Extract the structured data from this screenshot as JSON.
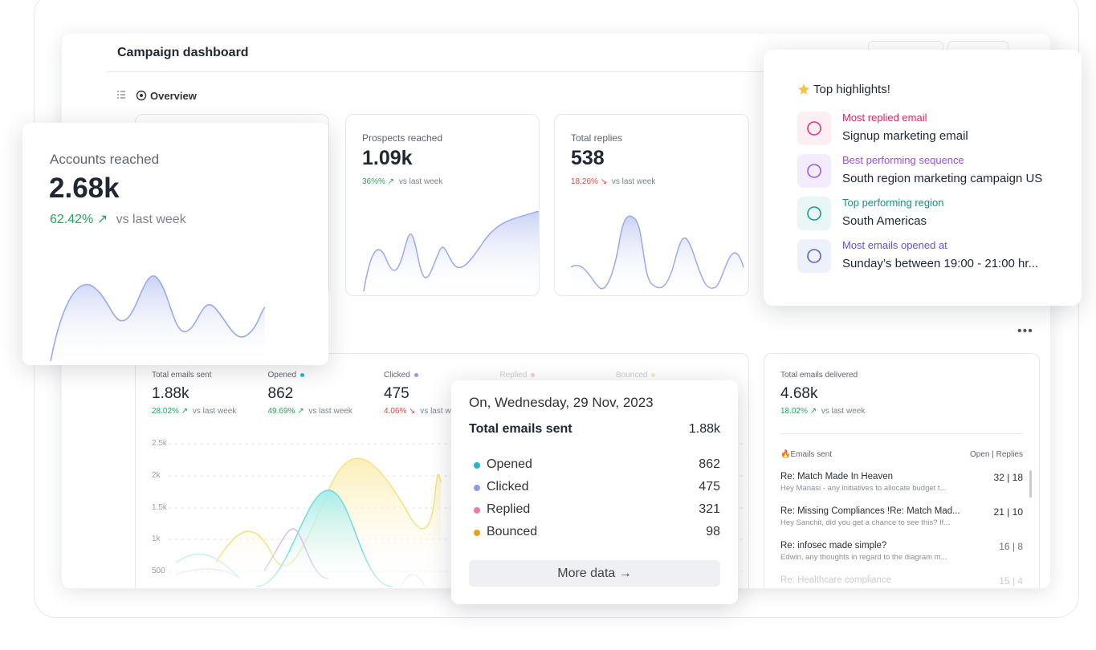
{
  "header": {
    "title": "Campaign dashboard",
    "tab": "Overview"
  },
  "kpis": [
    {
      "label": "Accounts reached",
      "value": "2.68k",
      "change": "62.42%",
      "compare": "vs last week"
    },
    {
      "label": "Prospects reached",
      "value": "1.09k",
      "change": "36%%",
      "compare": "vs last week"
    },
    {
      "label": "Total replies",
      "value": "538",
      "change": "18.26%",
      "compare": "vs last week"
    }
  ],
  "highlights": {
    "title": "Top highlights!",
    "items": [
      {
        "label": "Most replied email",
        "value": "Signup marketing email"
      },
      {
        "label": "Best performing sequence",
        "value": "South region marketing campaign US"
      },
      {
        "label": "Top performing region",
        "value": "South Americas"
      },
      {
        "label": "Most emails opened at",
        "value": "Sunday’s between 19:00 - 21:00 hr..."
      }
    ]
  },
  "email_stats": {
    "metrics": [
      {
        "label": "Total emails sent",
        "value": "1.88k",
        "change": "28.02%",
        "compare": "vs last week"
      },
      {
        "label": "Opened",
        "value": "862",
        "change": "49.69%",
        "compare": "vs last week"
      },
      {
        "label": "Clicked",
        "value": "475",
        "change": "4.06%",
        "compare": "vs last week"
      },
      {
        "label": "Replied"
      },
      {
        "label": "Bounced"
      }
    ],
    "yticks": [
      "2.5k",
      "2k",
      "1.5k",
      "1k",
      "500"
    ]
  },
  "tooltip": {
    "date": "On, Wednesday, 29 Nov, 2023",
    "total_label": "Total emails sent",
    "total_value": "1.88k",
    "rows": [
      {
        "label": "Opened",
        "value": "862"
      },
      {
        "label": "Clicked",
        "value": "475"
      },
      {
        "label": "Replied",
        "value": "321"
      },
      {
        "label": "Bounced",
        "value": "98"
      }
    ],
    "button": "More data"
  },
  "delivered": {
    "label": "Total emails delivered",
    "value": "4.68k",
    "change": "18.02%",
    "compare": "vs last week",
    "list_title": "Emails sent",
    "list_header": "Open | Replies",
    "emails": [
      {
        "subject": "Re: Match Made In Heaven",
        "preview": "Hey Manasi - any initiatives to allocate budget t...",
        "stats": "32 | 18"
      },
      {
        "subject": "Re: Missing Compliances !Re: Match Mad...",
        "preview": "Hey Sanchit, did you get a chance to see this? If...",
        "stats": "21 | 10"
      },
      {
        "subject": "Re: infosec made simple?",
        "preview": "Edwin, any thoughts in regard to the diagram m...",
        "stats": "16 | 8"
      },
      {
        "subject": "Re: Healthcare compliance",
        "stats": "15 | 4"
      }
    ]
  }
}
